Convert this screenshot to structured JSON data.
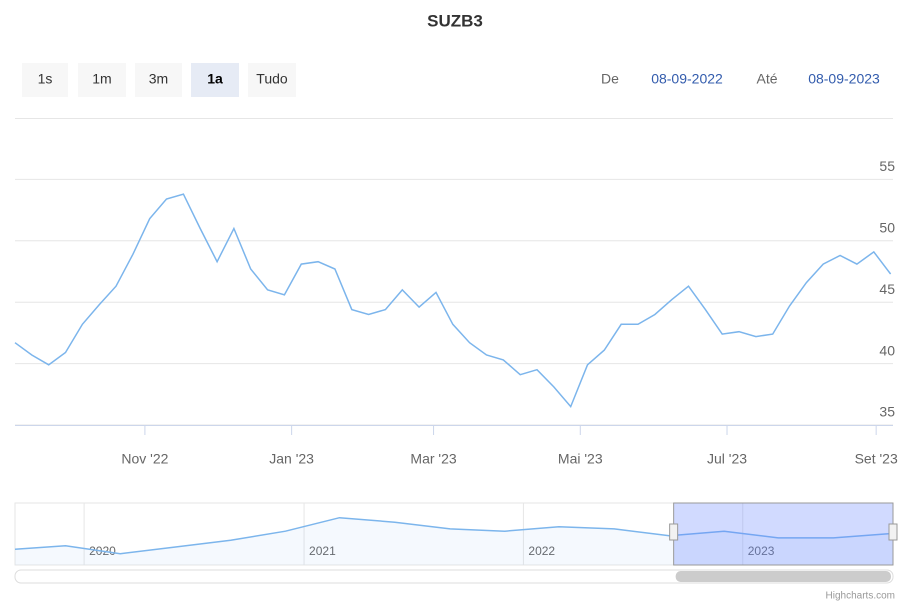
{
  "chart_data": {
    "type": "line",
    "title": "SUZB3",
    "color": "#7cb5ec",
    "x": [
      "2022-09-08",
      "2022-09-15",
      "2022-09-22",
      "2022-09-29",
      "2022-10-06",
      "2022-10-13",
      "2022-10-20",
      "2022-10-27",
      "2022-11-03",
      "2022-11-10",
      "2022-11-17",
      "2022-11-24",
      "2022-12-01",
      "2022-12-08",
      "2022-12-15",
      "2022-12-22",
      "2022-12-29",
      "2023-01-05",
      "2023-01-12",
      "2023-01-19",
      "2023-01-26",
      "2023-02-02",
      "2023-02-09",
      "2023-02-16",
      "2023-02-23",
      "2023-03-02",
      "2023-03-09",
      "2023-03-16",
      "2023-03-23",
      "2023-03-30",
      "2023-04-06",
      "2023-04-13",
      "2023-04-20",
      "2023-04-27",
      "2023-05-04",
      "2023-05-11",
      "2023-05-18",
      "2023-05-25",
      "2023-06-01",
      "2023-06-08",
      "2023-06-15",
      "2023-06-22",
      "2023-06-29",
      "2023-07-06",
      "2023-07-13",
      "2023-07-20",
      "2023-07-27",
      "2023-08-03",
      "2023-08-10",
      "2023-08-17",
      "2023-08-24",
      "2023-08-31",
      "2023-09-07"
    ],
    "values": [
      41.7,
      40.7,
      39.9,
      40.9,
      43.2,
      44.8,
      46.3,
      48.9,
      51.8,
      53.4,
      53.8,
      51,
      48.3,
      51,
      47.7,
      46,
      45.6,
      48.1,
      48.3,
      47.7,
      44.4,
      44,
      44.4,
      46,
      44.6,
      45.8,
      43.2,
      41.7,
      40.7,
      40.3,
      39.1,
      39.5,
      38.1,
      36.5,
      39.9,
      41.1,
      43.2,
      43.2,
      44,
      45.2,
      46.3,
      44.4,
      42.4,
      42.6,
      42.2,
      42.4,
      44.7,
      46.6,
      48.1,
      48.8,
      48.1,
      49.1,
      47.3
    ],
    "xlim": [
      "2022-09-08",
      "2023-09-08"
    ],
    "xticks": [
      {
        "value": "2022-11-01",
        "label": "Nov '22"
      },
      {
        "value": "2023-01-01",
        "label": "Jan '23"
      },
      {
        "value": "2023-03-01",
        "label": "Mar '23"
      },
      {
        "value": "2023-05-01",
        "label": "Mai '23"
      },
      {
        "value": "2023-07-01",
        "label": "Jul '23"
      },
      {
        "value": "2023-09-01",
        "label": "Set '23"
      }
    ],
    "ylim": [
      35,
      60
    ],
    "yticks": [
      35,
      40,
      45,
      50,
      55
    ],
    "grid": true,
    "navigator": {
      "x": [
        "2019-09-08",
        "2019-12-01",
        "2020-03-01",
        "2020-06-01",
        "2020-09-01",
        "2020-12-01",
        "2021-03-01",
        "2021-06-01",
        "2021-09-01",
        "2021-12-01",
        "2022-03-01",
        "2022-06-01",
        "2022-09-01",
        "2022-12-01",
        "2023-03-01",
        "2023-06-01",
        "2023-09-07"
      ],
      "values": [
        34,
        37,
        30,
        36,
        42,
        50,
        62,
        58,
        52,
        50,
        54,
        52,
        46,
        50,
        44,
        44,
        48
      ],
      "xlim": [
        "2019-09-08",
        "2023-09-08"
      ],
      "ylim": [
        20,
        75
      ],
      "xticks": [
        {
          "value": "2020-01-01",
          "label": "2020"
        },
        {
          "value": "2021-01-01",
          "label": "2021"
        },
        {
          "value": "2022-01-01",
          "label": "2022"
        },
        {
          "value": "2023-01-01",
          "label": "2023"
        }
      ]
    }
  },
  "range_selector": {
    "buttons": [
      "1s",
      "1m",
      "3m",
      "1a",
      "Tudo"
    ],
    "selected": 3,
    "from_label": "De",
    "from": "08-09-2022",
    "to_label": "Até",
    "to": "08-09-2023"
  },
  "credits": "Highcharts.com"
}
